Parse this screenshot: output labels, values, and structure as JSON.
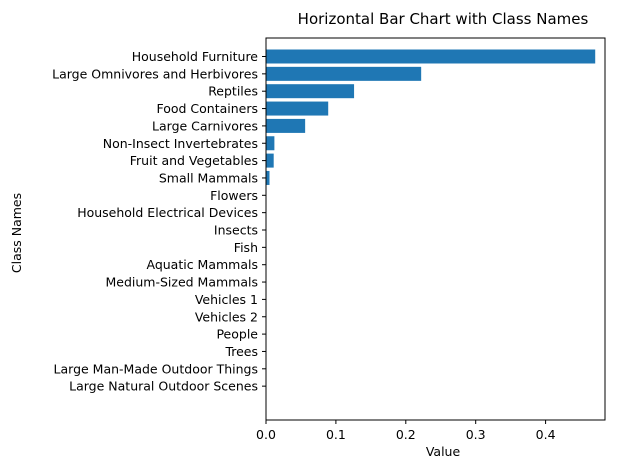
{
  "chart_data": {
    "type": "bar",
    "orientation": "horizontal",
    "title": "Horizontal Bar Chart with Class Names",
    "xlabel": "Value",
    "ylabel": "Class Names",
    "xlim": [
      0,
      0.485
    ],
    "xticks": [
      0.0,
      0.1,
      0.2,
      0.3,
      0.4
    ],
    "xtick_labels": [
      "0.0",
      "0.1",
      "0.2",
      "0.3",
      "0.4"
    ],
    "grid": false,
    "bar_color": "#1f77b4",
    "categories": [
      "Household Furniture",
      "Large Omnivores and Herbivores",
      "Reptiles",
      "Food Containers",
      "Large Carnivores",
      "Non-Insect Invertebrates",
      "Fruit and Vegetables",
      "Small Mammals",
      "Flowers",
      "Household Electrical Devices",
      "Insects",
      "Fish",
      "Aquatic Mammals",
      "Medium-Sized Mammals",
      "Vehicles 1",
      "Vehicles 2",
      "People",
      "Trees",
      "Large Man-Made Outdoor Things",
      "Large Natural Outdoor Scenes"
    ],
    "values": [
      0.471,
      0.222,
      0.126,
      0.089,
      0.056,
      0.012,
      0.011,
      0.005,
      0.0005,
      0.0004,
      0.0003,
      0.0003,
      0.0002,
      0.0002,
      0.0001,
      0.0001,
      0.0001,
      0.0001,
      0.0001,
      0.0001
    ]
  }
}
